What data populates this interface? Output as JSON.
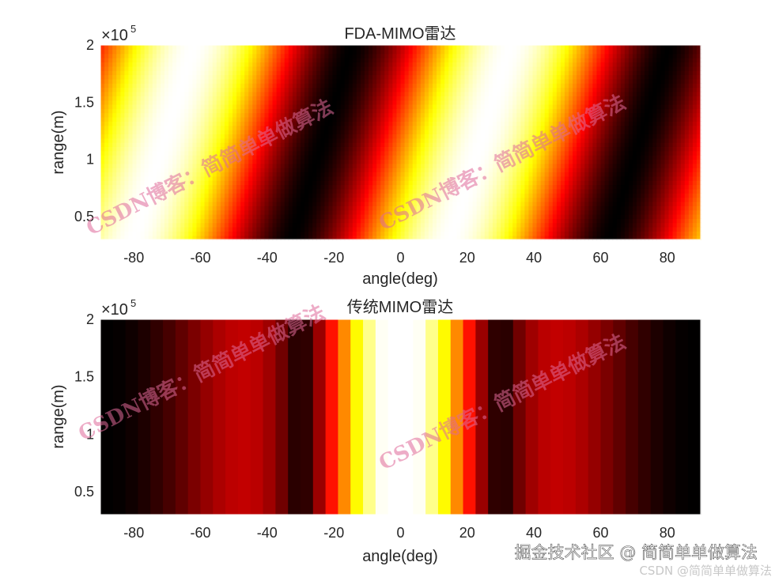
{
  "chart_data": [
    {
      "type": "heatmap",
      "title": "FDA-MIMO雷达",
      "xlabel": "angle(deg)",
      "ylabel": "range(m)",
      "xlim": [
        -90,
        90
      ],
      "ylim": [
        30000,
        200000
      ],
      "xticks": [
        -80,
        -60,
        -40,
        -20,
        0,
        20,
        40,
        60,
        80
      ],
      "xtick_labels": [
        "-80",
        "-60",
        "-40",
        "-20",
        "0",
        "20",
        "40",
        "60",
        "80"
      ],
      "yticks": [
        50000,
        100000,
        150000,
        200000
      ],
      "ytick_labels": [
        "0.5",
        "1",
        "1.5",
        "2"
      ],
      "y_exponent": {
        "base": "×10",
        "power": "5"
      },
      "colormap": "hot",
      "grid": false,
      "pattern": {
        "kind": "diagonal-stripes",
        "bright_ridges_at_bottom_deg": [
          -80,
          15
        ],
        "bright_ridges_at_top_deg": [
          -62,
          30
        ],
        "dark_ridges_at_bottom_deg": [
          -25,
          65
        ],
        "dark_ridges_at_top_deg": [
          -18,
          85
        ]
      }
    },
    {
      "type": "heatmap",
      "title": "传统MIMO雷达",
      "xlabel": "angle(deg)",
      "ylabel": "range(m)",
      "xlim": [
        -90,
        90
      ],
      "ylim": [
        30000,
        200000
      ],
      "xticks": [
        -80,
        -60,
        -40,
        -20,
        0,
        20,
        40,
        60,
        80
      ],
      "xtick_labels": [
        "-80",
        "-60",
        "-40",
        "-20",
        "0",
        "20",
        "40",
        "60",
        "80"
      ],
      "yticks": [
        50000,
        100000,
        150000,
        200000
      ],
      "ytick_labels": [
        "0.5",
        "1",
        "1.5",
        "2"
      ],
      "y_exponent": {
        "base": "×10",
        "power": "5"
      },
      "colormap": "hot",
      "grid": false,
      "pattern": {
        "kind": "vertical-bands",
        "peak_deg": 0,
        "null_deg": [
          -60,
          60
        ],
        "edge_level": 0.38
      }
    }
  ],
  "watermarks": [
    {
      "text": "CSDN博客：简简单单做算法"
    },
    {
      "text": "CSDN博客：简简单单做算法"
    },
    {
      "text": "CSDN博客：简简单单做算法"
    },
    {
      "text": "CSDN博客：简简单单做算法"
    }
  ],
  "footer": {
    "platform_credit": "掘金技术社区 @ 简简单单做算法",
    "csdn_credit": "CSDN @简简单单做算法"
  }
}
